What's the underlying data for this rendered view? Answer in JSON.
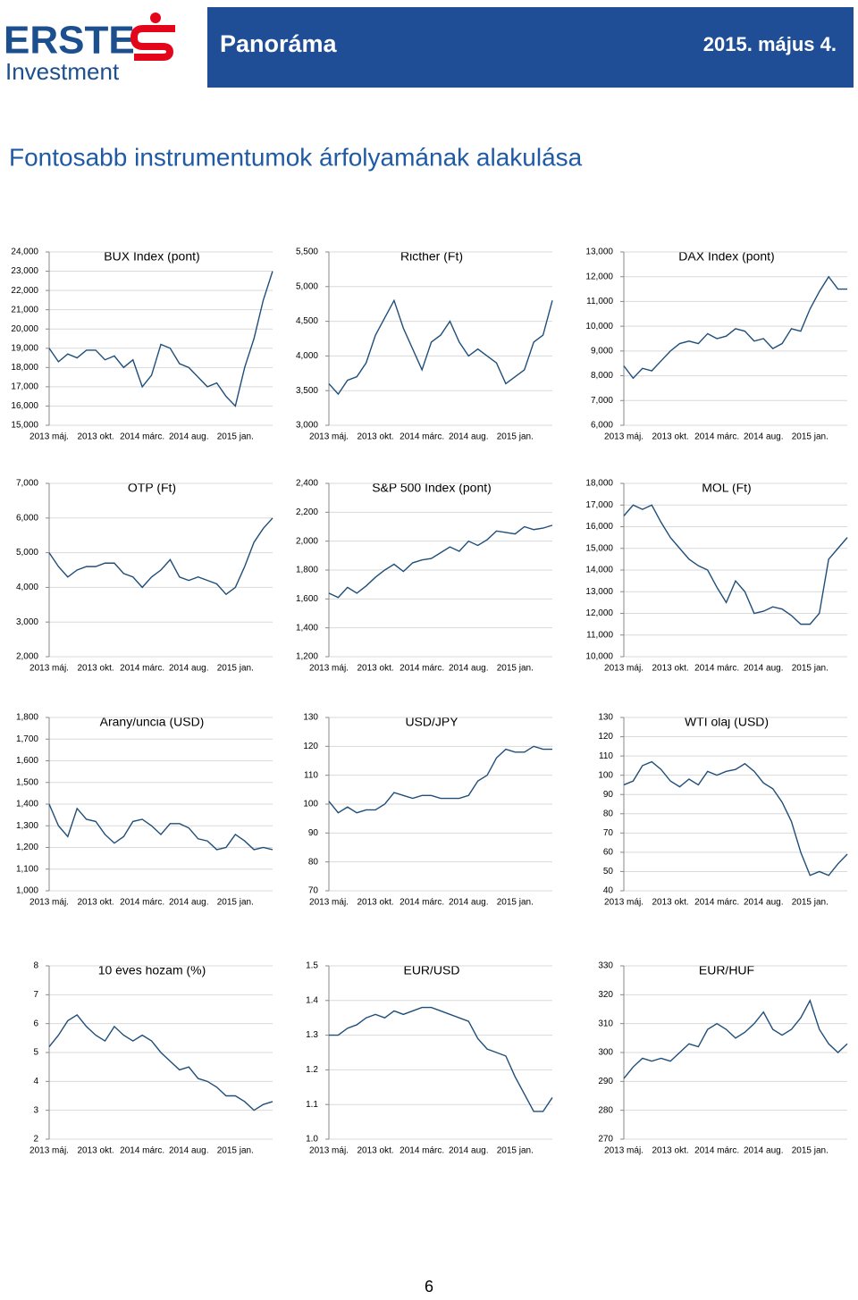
{
  "header": {
    "logo_name": "ERSTE",
    "logo_sub": "Investment",
    "title": "Panoráma",
    "date": "2015. május 4."
  },
  "heading": "Fontosabb instrumentumok árfolyamának alakulása",
  "page_number": "6",
  "chart_data": [
    {
      "type": "line",
      "title": "BUX Index (pont)",
      "color": "#1f4e79",
      "grid": true,
      "categories": [
        "2013 máj.",
        null,
        null,
        null,
        null,
        "2013 okt.",
        null,
        null,
        null,
        null,
        "2014 márc.",
        null,
        null,
        null,
        null,
        "2014 aug.",
        null,
        null,
        null,
        null,
        "2015 jan.",
        null,
        null,
        null,
        null
      ],
      "values": [
        19000,
        18300,
        18700,
        18500,
        18900,
        18900,
        18400,
        18600,
        18000,
        18400,
        17000,
        17600,
        19200,
        19000,
        18200,
        18000,
        17500,
        17000,
        17200,
        16500,
        16000,
        18000,
        19500,
        21500,
        23000
      ],
      "ylim": [
        15000,
        24000
      ],
      "yticks": [
        {
          "value": 15000,
          "label": "15,000"
        },
        {
          "value": 16000,
          "label": "16,000"
        },
        {
          "value": 17000,
          "label": "17,000"
        },
        {
          "value": 18000,
          "label": "18,000"
        },
        {
          "value": 19000,
          "label": "19,000"
        },
        {
          "value": 20000,
          "label": "20,000"
        },
        {
          "value": 21000,
          "label": "21,000"
        },
        {
          "value": 22000,
          "label": "22,000"
        },
        {
          "value": 23000,
          "label": "23,000"
        },
        {
          "value": 24000,
          "label": "24,000"
        }
      ]
    },
    {
      "type": "line",
      "title": "Ricther (Ft)",
      "color": "#1f4e79",
      "grid": true,
      "categories": [
        "2013 máj.",
        null,
        null,
        null,
        null,
        "2013 okt.",
        null,
        null,
        null,
        null,
        "2014 márc.",
        null,
        null,
        null,
        null,
        "2014 aug.",
        null,
        null,
        null,
        null,
        "2015 jan.",
        null,
        null,
        null,
        null
      ],
      "values": [
        3600,
        3450,
        3650,
        3700,
        3900,
        4300,
        4550,
        4800,
        4400,
        4100,
        3800,
        4200,
        4300,
        4500,
        4200,
        4000,
        4100,
        4000,
        3900,
        3600,
        3700,
        3800,
        4200,
        4300,
        4800
      ],
      "ylim": [
        3000,
        5500
      ],
      "yticks": [
        {
          "value": 3000,
          "label": "3,000"
        },
        {
          "value": 3500,
          "label": "3,500"
        },
        {
          "value": 4000,
          "label": "4,000"
        },
        {
          "value": 4500,
          "label": "4,500"
        },
        {
          "value": 5000,
          "label": "5,000"
        },
        {
          "value": 5500,
          "label": "5,500"
        }
      ]
    },
    {
      "type": "line",
      "title": "DAX Index (pont)",
      "color": "#1f4e79",
      "grid": true,
      "categories": [
        "2013 máj.",
        null,
        null,
        null,
        null,
        "2013 okt.",
        null,
        null,
        null,
        null,
        "2014 márc.",
        null,
        null,
        null,
        null,
        "2014 aug.",
        null,
        null,
        null,
        null,
        "2015 jan.",
        null,
        null,
        null,
        null
      ],
      "values": [
        8400,
        7900,
        8300,
        8200,
        8600,
        9000,
        9300,
        9400,
        9300,
        9700,
        9500,
        9600,
        9900,
        9800,
        9400,
        9500,
        9100,
        9300,
        9900,
        9800,
        10700,
        11400,
        12000,
        11500,
        11500
      ],
      "ylim": [
        6000,
        13000
      ],
      "yticks": [
        {
          "value": 6000,
          "label": "6,000"
        },
        {
          "value": 7000,
          "label": "7,000"
        },
        {
          "value": 8000,
          "label": "8,000"
        },
        {
          "value": 9000,
          "label": "9,000"
        },
        {
          "value": 10000,
          "label": "10,000"
        },
        {
          "value": 11000,
          "label": "11,000"
        },
        {
          "value": 12000,
          "label": "12,000"
        },
        {
          "value": 13000,
          "label": "13,000"
        }
      ]
    },
    {
      "type": "line",
      "title": "OTP (Ft)",
      "color": "#1f4e79",
      "grid": true,
      "categories": [
        "2013 máj.",
        null,
        null,
        null,
        null,
        "2013 okt.",
        null,
        null,
        null,
        null,
        "2014 márc.",
        null,
        null,
        null,
        null,
        "2014 aug.",
        null,
        null,
        null,
        null,
        "2015 jan.",
        null,
        null,
        null,
        null
      ],
      "values": [
        5000,
        4600,
        4300,
        4500,
        4600,
        4600,
        4700,
        4700,
        4400,
        4300,
        4000,
        4300,
        4500,
        4800,
        4300,
        4200,
        4300,
        4200,
        4100,
        3800,
        4000,
        4600,
        5300,
        5700,
        6000
      ],
      "ylim": [
        2000,
        7000
      ],
      "yticks": [
        {
          "value": 2000,
          "label": "2,000"
        },
        {
          "value": 3000,
          "label": "3,000"
        },
        {
          "value": 4000,
          "label": "4,000"
        },
        {
          "value": 5000,
          "label": "5,000"
        },
        {
          "value": 6000,
          "label": "6,000"
        },
        {
          "value": 7000,
          "label": "7,000"
        }
      ]
    },
    {
      "type": "line",
      "title": "S&P 500 Index (pont)",
      "color": "#1f4e79",
      "grid": true,
      "categories": [
        "2013 máj.",
        null,
        null,
        null,
        null,
        "2013 okt.",
        null,
        null,
        null,
        null,
        "2014 márc.",
        null,
        null,
        null,
        null,
        "2014 aug.",
        null,
        null,
        null,
        null,
        "2015 jan.",
        null,
        null,
        null,
        null
      ],
      "values": [
        1640,
        1610,
        1680,
        1640,
        1690,
        1750,
        1800,
        1840,
        1790,
        1850,
        1870,
        1880,
        1920,
        1960,
        1930,
        2000,
        1970,
        2010,
        2070,
        2060,
        2050,
        2100,
        2080,
        2090,
        2110
      ],
      "ylim": [
        1200,
        2400
      ],
      "yticks": [
        {
          "value": 1200,
          "label": "1,200"
        },
        {
          "value": 1400,
          "label": "1,400"
        },
        {
          "value": 1600,
          "label": "1,600"
        },
        {
          "value": 1800,
          "label": "1,800"
        },
        {
          "value": 2000,
          "label": "2,000"
        },
        {
          "value": 2200,
          "label": "2,200"
        },
        {
          "value": 2400,
          "label": "2,400"
        }
      ]
    },
    {
      "type": "line",
      "title": "MOL (Ft)",
      "color": "#1f4e79",
      "grid": true,
      "categories": [
        "2013 máj.",
        null,
        null,
        null,
        null,
        "2013 okt.",
        null,
        null,
        null,
        null,
        "2014 márc.",
        null,
        null,
        null,
        null,
        "2014 aug.",
        null,
        null,
        null,
        null,
        "2015 jan.",
        null,
        null,
        null,
        null
      ],
      "values": [
        16500,
        17000,
        16800,
        17000,
        16200,
        15500,
        15000,
        14500,
        14200,
        14000,
        13200,
        12500,
        13500,
        13000,
        12000,
        12100,
        12300,
        12200,
        11900,
        11500,
        11500,
        12000,
        14500,
        15000,
        15500
      ],
      "ylim": [
        10000,
        18000
      ],
      "yticks": [
        {
          "value": 10000,
          "label": "10,000"
        },
        {
          "value": 11000,
          "label": "11,000"
        },
        {
          "value": 12000,
          "label": "12,000"
        },
        {
          "value": 13000,
          "label": "13,000"
        },
        {
          "value": 14000,
          "label": "14,000"
        },
        {
          "value": 15000,
          "label": "15,000"
        },
        {
          "value": 16000,
          "label": "16,000"
        },
        {
          "value": 17000,
          "label": "17,000"
        },
        {
          "value": 18000,
          "label": "18,000"
        }
      ]
    },
    {
      "type": "line",
      "title": "Arany/uncia (USD)",
      "color": "#1f4e79",
      "grid": true,
      "categories": [
        "2013 máj.",
        null,
        null,
        null,
        null,
        "2013 okt.",
        null,
        null,
        null,
        null,
        "2014 márc.",
        null,
        null,
        null,
        null,
        "2014 aug.",
        null,
        null,
        null,
        null,
        "2015 jan.",
        null,
        null,
        null,
        null
      ],
      "values": [
        1400,
        1300,
        1250,
        1380,
        1330,
        1320,
        1260,
        1220,
        1250,
        1320,
        1330,
        1300,
        1260,
        1310,
        1310,
        1290,
        1240,
        1230,
        1190,
        1200,
        1260,
        1230,
        1190,
        1200,
        1190
      ],
      "ylim": [
        1000,
        1800
      ],
      "yticks": [
        {
          "value": 1000,
          "label": "1,000"
        },
        {
          "value": 1100,
          "label": "1,100"
        },
        {
          "value": 1200,
          "label": "1,200"
        },
        {
          "value": 1300,
          "label": "1,300"
        },
        {
          "value": 1400,
          "label": "1,400"
        },
        {
          "value": 1500,
          "label": "1,500"
        },
        {
          "value": 1600,
          "label": "1,600"
        },
        {
          "value": 1700,
          "label": "1,700"
        },
        {
          "value": 1800,
          "label": "1,800"
        }
      ]
    },
    {
      "type": "line",
      "title": "USD/JPY",
      "color": "#1f4e79",
      "grid": true,
      "categories": [
        "2013 máj.",
        null,
        null,
        null,
        null,
        "2013 okt.",
        null,
        null,
        null,
        null,
        "2014 márc.",
        null,
        null,
        null,
        null,
        "2014 aug.",
        null,
        null,
        null,
        null,
        "2015 jan.",
        null,
        null,
        null,
        null
      ],
      "values": [
        101,
        97,
        99,
        97,
        98,
        98,
        100,
        104,
        103,
        102,
        103,
        103,
        102,
        102,
        102,
        103,
        108,
        110,
        116,
        119,
        118,
        118,
        120,
        119,
        119
      ],
      "ylim": [
        70,
        130
      ],
      "yticks": [
        70,
        80,
        90,
        100,
        110,
        120,
        130
      ]
    },
    {
      "type": "line",
      "title": "WTI olaj (USD)",
      "color": "#1f4e79",
      "grid": true,
      "categories": [
        "2013 máj.",
        null,
        null,
        null,
        null,
        "2013 okt.",
        null,
        null,
        null,
        null,
        "2014 márc.",
        null,
        null,
        null,
        null,
        "2014 aug.",
        null,
        null,
        null,
        null,
        "2015 jan.",
        null,
        null,
        null,
        null
      ],
      "values": [
        95,
        97,
        105,
        107,
        103,
        97,
        94,
        98,
        95,
        102,
        100,
        102,
        103,
        106,
        102,
        96,
        93,
        86,
        76,
        60,
        48,
        50,
        48,
        54,
        59
      ],
      "ylim": [
        40,
        130
      ],
      "yticks": [
        40,
        50,
        60,
        70,
        80,
        90,
        100,
        110,
        120,
        130
      ]
    },
    {
      "type": "line",
      "title": "10 éves hozam (%)",
      "color": "#1f4e79",
      "grid": true,
      "categories": [
        "2013 máj.",
        null,
        null,
        null,
        null,
        "2013 okt.",
        null,
        null,
        null,
        null,
        "2014 márc.",
        null,
        null,
        null,
        null,
        "2014 aug.",
        null,
        null,
        null,
        null,
        "2015 jan.",
        null,
        null,
        null,
        null
      ],
      "values": [
        5.2,
        5.6,
        6.1,
        6.3,
        5.9,
        5.6,
        5.4,
        5.9,
        5.6,
        5.4,
        5.6,
        5.4,
        5.0,
        4.7,
        4.4,
        4.5,
        4.1,
        4.0,
        3.8,
        3.5,
        3.5,
        3.3,
        3.0,
        3.2,
        3.3
      ],
      "ylim": [
        2,
        8
      ],
      "yticks": [
        2,
        3,
        4,
        5,
        6,
        7,
        8
      ]
    },
    {
      "type": "line",
      "title": "EUR/USD",
      "color": "#1f4e79",
      "grid": true,
      "categories": [
        "2013 máj.",
        null,
        null,
        null,
        null,
        "2013 okt.",
        null,
        null,
        null,
        null,
        "2014 márc.",
        null,
        null,
        null,
        null,
        "2014 aug.",
        null,
        null,
        null,
        null,
        "2015 jan.",
        null,
        null,
        null,
        null
      ],
      "values": [
        1.3,
        1.3,
        1.32,
        1.33,
        1.35,
        1.36,
        1.35,
        1.37,
        1.36,
        1.37,
        1.38,
        1.38,
        1.37,
        1.36,
        1.35,
        1.34,
        1.29,
        1.26,
        1.25,
        1.24,
        1.18,
        1.13,
        1.08,
        1.08,
        1.12
      ],
      "ylim": [
        1.0,
        1.5
      ],
      "yticks": [
        {
          "value": 1.0,
          "label": "1.0"
        },
        1.1,
        1.2,
        1.3,
        1.4,
        1.5
      ]
    },
    {
      "type": "line",
      "title": "EUR/HUF",
      "color": "#1f4e79",
      "grid": true,
      "categories": [
        "2013 máj.",
        null,
        null,
        null,
        null,
        "2013 okt.",
        null,
        null,
        null,
        null,
        "2014 márc.",
        null,
        null,
        null,
        null,
        "2014 aug.",
        null,
        null,
        null,
        null,
        "2015 jan.",
        null,
        null,
        null,
        null
      ],
      "values": [
        291,
        295,
        298,
        297,
        298,
        297,
        300,
        303,
        302,
        308,
        310,
        308,
        305,
        307,
        310,
        314,
        308,
        306,
        308,
        312,
        318,
        308,
        303,
        300,
        303
      ],
      "ylim": [
        270,
        330
      ],
      "yticks": [
        270,
        280,
        290,
        300,
        310,
        320,
        330
      ]
    }
  ]
}
